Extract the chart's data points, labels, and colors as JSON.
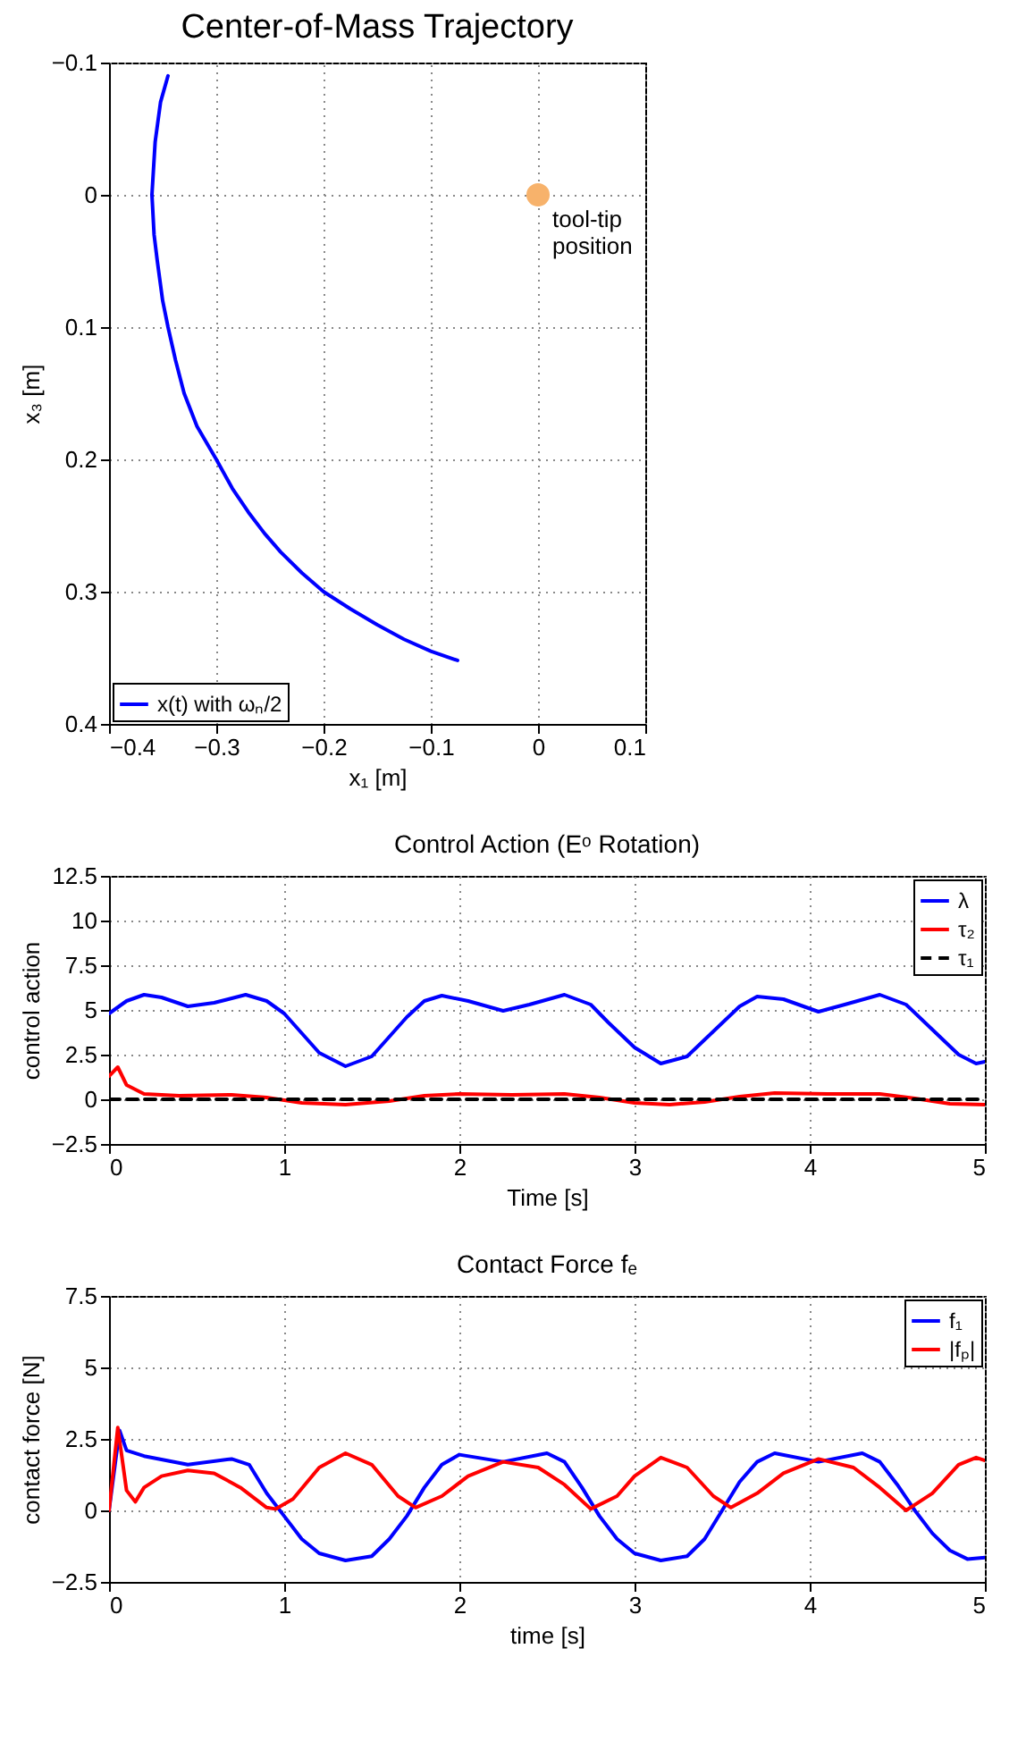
{
  "chart_data": [
    {
      "type": "line",
      "title": "Center-of-Mass Trajectory",
      "xlabel": "x₁ [m]",
      "ylabel": "x₃ [m]",
      "xlim": [
        -0.4,
        0.1
      ],
      "xticks": [
        -0.4,
        -0.3,
        -0.2,
        -0.1,
        0,
        0.1
      ],
      "ylim": [
        0.4,
        -0.1
      ],
      "yticks": [
        -0.1,
        0,
        0.1,
        0.2,
        0.3,
        0.4
      ],
      "grid": true,
      "legend": "bottom left",
      "annotations": [
        {
          "text": "tool-tip position",
          "x": 0,
          "y": 0
        }
      ],
      "series": [
        {
          "name": "x(t) with ωₙ/2",
          "color": "#0000ff",
          "x": [
            -0.345,
            -0.352,
            -0.357,
            -0.36,
            -0.358,
            -0.355,
            -0.35,
            -0.345,
            -0.338,
            -0.33,
            -0.318,
            -0.3,
            -0.285,
            -0.27,
            -0.255,
            -0.24,
            -0.22,
            -0.2,
            -0.175,
            -0.15,
            -0.125,
            -0.1,
            -0.075
          ],
          "values": [
            -0.09,
            -0.07,
            -0.04,
            0,
            0.03,
            0.05,
            0.08,
            0.1,
            0.125,
            0.15,
            0.175,
            0.2,
            0.222,
            0.24,
            0.256,
            0.27,
            0.286,
            0.3,
            0.313,
            0.325,
            0.336,
            0.345,
            0.352
          ]
        },
        {
          "type": "scatter",
          "color": "#f7b26b",
          "marker": "circle",
          "x": [
            0
          ],
          "values": [
            0
          ]
        }
      ]
    },
    {
      "type": "line",
      "title": "Control Action (Eᵒ Rotation)",
      "xlabel": "Time [s]",
      "ylabel": "control action",
      "xlim": [
        0,
        5
      ],
      "xticks": [
        0,
        1,
        2,
        3,
        4,
        5
      ],
      "ylim": [
        -2.5,
        12.5
      ],
      "yticks": [
        -2.5,
        0,
        2.5,
        5,
        7.5,
        10,
        12.5
      ],
      "grid": true,
      "legend": "top right",
      "series": [
        {
          "name": "λ",
          "color": "#0000ff",
          "x": [
            0,
            0.1,
            0.2,
            0.3,
            0.45,
            0.6,
            0.78,
            0.9,
            1.0,
            1.1,
            1.2,
            1.35,
            1.5,
            1.6,
            1.7,
            1.8,
            1.9,
            2.05,
            2.25,
            2.4,
            2.6,
            2.75,
            2.85,
            3.0,
            3.15,
            3.3,
            3.45,
            3.6,
            3.7,
            3.85,
            4.05,
            4.2,
            4.4,
            4.55,
            4.7,
            4.85,
            4.95,
            5.0
          ],
          "values": [
            4.8,
            5.5,
            5.85,
            5.7,
            5.2,
            5.4,
            5.85,
            5.5,
            4.8,
            3.7,
            2.6,
            1.85,
            2.4,
            3.5,
            4.6,
            5.5,
            5.8,
            5.5,
            4.95,
            5.3,
            5.85,
            5.3,
            4.3,
            2.9,
            2.0,
            2.4,
            3.8,
            5.2,
            5.75,
            5.6,
            4.9,
            5.3,
            5.85,
            5.3,
            3.9,
            2.5,
            2.0,
            2.1
          ]
        },
        {
          "name": "τ₂",
          "color": "#ff0000",
          "x": [
            0,
            0.05,
            0.1,
            0.2,
            0.4,
            0.7,
            0.9,
            1.1,
            1.35,
            1.6,
            1.8,
            2.0,
            2.3,
            2.6,
            2.8,
            3.0,
            3.2,
            3.4,
            3.6,
            3.8,
            4.1,
            4.4,
            4.6,
            4.8,
            5.0
          ],
          "values": [
            1.3,
            1.8,
            0.8,
            0.3,
            0.2,
            0.25,
            0.1,
            -0.2,
            -0.3,
            -0.1,
            0.2,
            0.3,
            0.25,
            0.3,
            0.1,
            -0.2,
            -0.3,
            -0.15,
            0.15,
            0.35,
            0.3,
            0.3,
            0.05,
            -0.25,
            -0.3
          ]
        },
        {
          "name": "τ₁",
          "color": "#000000",
          "line_style": "dashed",
          "x": [
            0,
            5
          ],
          "values": [
            0,
            0
          ]
        }
      ]
    },
    {
      "type": "line",
      "title": "Contact Force fₑ",
      "xlabel": "time [s]",
      "ylabel": "contact force [N]",
      "xlim": [
        0,
        5
      ],
      "xticks": [
        0,
        1,
        2,
        3,
        4,
        5
      ],
      "ylim": [
        -2.5,
        7.5
      ],
      "yticks": [
        -2.5,
        0,
        2.5,
        5,
        7.5
      ],
      "grid": true,
      "legend": "top right",
      "series": [
        {
          "name": "f₁",
          "color": "#0000ff",
          "x": [
            0,
            0.06,
            0.1,
            0.2,
            0.45,
            0.7,
            0.8,
            0.9,
            1.0,
            1.1,
            1.2,
            1.35,
            1.5,
            1.6,
            1.7,
            1.8,
            1.9,
            2.0,
            2.25,
            2.5,
            2.6,
            2.7,
            2.8,
            2.9,
            3.0,
            3.15,
            3.3,
            3.4,
            3.5,
            3.6,
            3.7,
            3.8,
            4.05,
            4.3,
            4.4,
            4.5,
            4.6,
            4.7,
            4.8,
            4.9,
            5.0
          ],
          "values": [
            0,
            2.8,
            2.1,
            1.9,
            1.6,
            1.8,
            1.6,
            0.6,
            -0.2,
            -1.0,
            -1.5,
            -1.75,
            -1.6,
            -1.0,
            -0.2,
            0.8,
            1.6,
            1.95,
            1.7,
            2.0,
            1.7,
            0.8,
            -0.2,
            -1.0,
            -1.5,
            -1.75,
            -1.6,
            -1.0,
            0.0,
            1.0,
            1.7,
            2.0,
            1.7,
            2.0,
            1.7,
            0.9,
            0,
            -0.8,
            -1.4,
            -1.7,
            -1.65
          ]
        },
        {
          "name": "|fₚ|",
          "color": "#ff0000",
          "x": [
            0,
            0.05,
            0.1,
            0.15,
            0.2,
            0.3,
            0.45,
            0.6,
            0.75,
            0.9,
            0.95,
            1.05,
            1.2,
            1.35,
            1.5,
            1.65,
            1.75,
            1.9,
            2.05,
            2.25,
            2.45,
            2.6,
            2.75,
            2.9,
            3.0,
            3.15,
            3.3,
            3.45,
            3.55,
            3.7,
            3.85,
            4.05,
            4.25,
            4.4,
            4.55,
            4.7,
            4.85,
            4.95,
            5.0
          ],
          "values": [
            0,
            2.9,
            0.7,
            0.3,
            0.8,
            1.2,
            1.4,
            1.3,
            0.8,
            0.1,
            0.05,
            0.4,
            1.5,
            2.0,
            1.6,
            0.5,
            0.1,
            0.5,
            1.2,
            1.7,
            1.5,
            0.9,
            0.05,
            0.5,
            1.2,
            1.85,
            1.5,
            0.5,
            0.1,
            0.6,
            1.3,
            1.8,
            1.5,
            0.8,
            0.0,
            0.6,
            1.6,
            1.85,
            1.75
          ]
        }
      ]
    }
  ]
}
